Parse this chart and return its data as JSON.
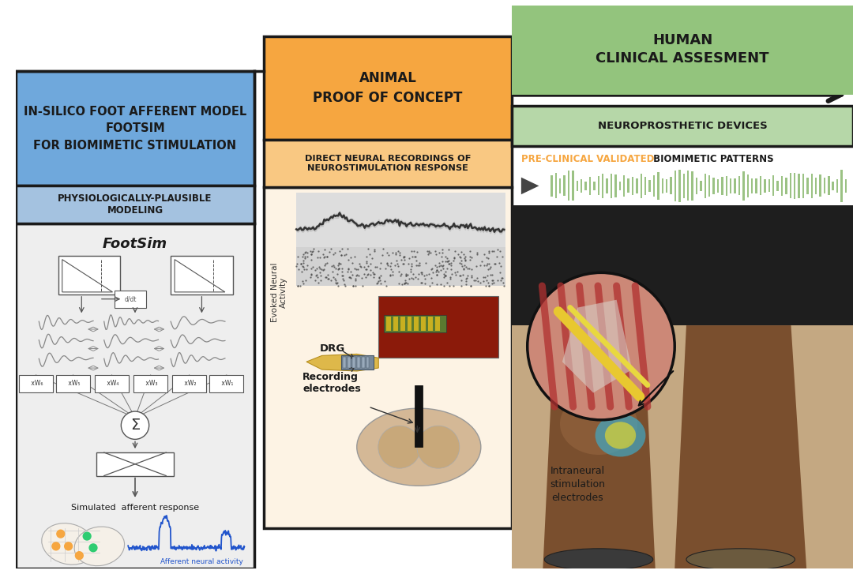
{
  "bg_color": "#ffffff",
  "p1_blue": "#6fa8dc",
  "p1_blue_light": "#a4c2e0",
  "p1_gray": "#eeeeee",
  "p1_title": "IN-SILICO FOOT AFFERENT MODEL\nFOOTSIM\nFOR BIOMIMETIC STIMULATION",
  "p1_sub": "PHYSIOLOGICALLY-PLAUSIBLE\nMODELING",
  "p1_footsim": "FootSim",
  "p1_sim": "Simulated  afferent response",
  "p1_afferent": "Afferent neural activity",
  "p2_orange": "#f6a640",
  "p2_orange_light": "#f9c882",
  "p2_peach": "#fdf3e4",
  "p2_title": "ANIMAL\nPROOF OF CONCEPT",
  "p2_sub": "DIRECT NEURAL RECORDINGS OF\nNEUROSTIMULATION RESPONSE",
  "p2_drg": "DRG",
  "p2_recording": "Recording\nelectrodes",
  "p2_evoked": "Evoked Neural\nActivity",
  "p3_green_dark": "#6aa84f",
  "p3_green_light": "#b6d7a8",
  "p3_green_box": "#93c47d",
  "p3_title": "HUMAN\nCLINICAL ASSESMENT",
  "p3_neuro": "NEUROPROSTHETIC DEVICES",
  "p3_pre1": "PRE-CLINICAL VALIDATED",
  "p3_pre1_color": "#f6a640",
  "p3_pre2": " BIOMIMETIC PATTERNS",
  "p3_intraneural": "Intraneural\nstimulation\nelectrodes",
  "outline": "#1a1a1a",
  "olw": 2.5,
  "dark": "#1a1a1a",
  "blue_sig": "#2255cc",
  "green_bar": "#82b366"
}
